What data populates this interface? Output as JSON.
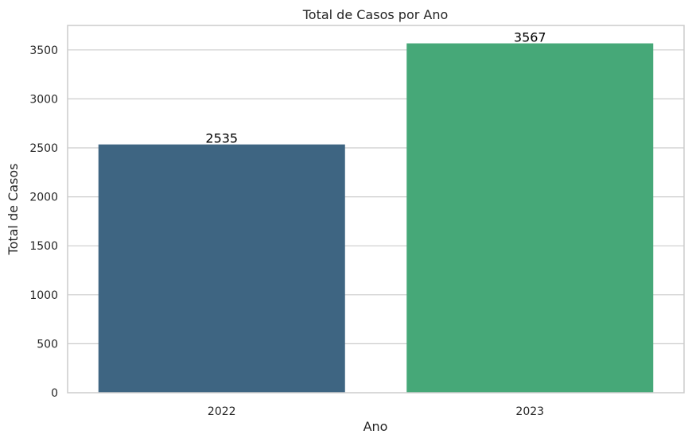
{
  "chart_data": {
    "type": "bar",
    "title": "Total de Casos por Ano",
    "xlabel": "Ano",
    "ylabel": "Total de Casos",
    "categories": [
      "2022",
      "2023"
    ],
    "values": [
      2535,
      3567
    ],
    "data_labels": [
      "2535",
      "3567"
    ],
    "colors": [
      "#3e6582",
      "#46a878"
    ],
    "ylim": [
      0,
      3750
    ],
    "yticks": [
      0,
      500,
      1000,
      1500,
      2000,
      2500,
      3000,
      3500
    ],
    "ytick_labels": [
      "0",
      "500",
      "1000",
      "1500",
      "2000",
      "2500",
      "3000",
      "3500"
    ],
    "grid": true,
    "grid_color": "#cccccc",
    "legend": "none"
  }
}
